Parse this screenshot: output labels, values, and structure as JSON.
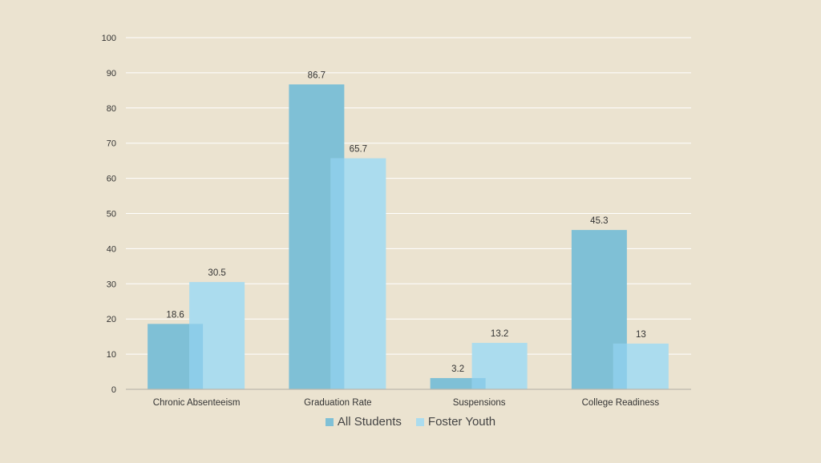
{
  "chart_data": {
    "type": "bar",
    "categories": [
      "Chronic Absenteeism",
      "Graduation Rate",
      "Suspensions",
      "College Readiness"
    ],
    "series": [
      {
        "name": "All Students",
        "values": [
          18.6,
          86.7,
          3.2,
          45.3
        ],
        "color": "#7fc0d6"
      },
      {
        "name": "Foster Youth",
        "values": [
          30.5,
          65.7,
          13.2,
          13
        ],
        "color": "#abdcee"
      }
    ],
    "overlap_color": "#8dcde9",
    "yticks": [
      0,
      10,
      20,
      30,
      40,
      50,
      60,
      70,
      80,
      90,
      100
    ],
    "ylim": [
      0,
      100
    ],
    "grid": true,
    "legend_position": "bottom",
    "background": "#ebe3d0"
  }
}
